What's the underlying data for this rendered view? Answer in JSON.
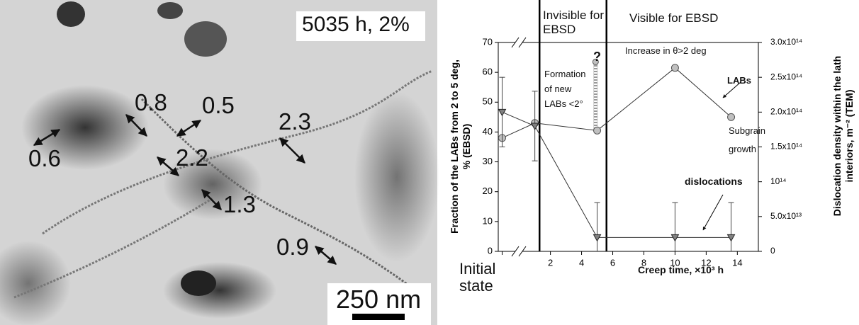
{
  "micrograph": {
    "condition": "5035 h, 2%",
    "scale_bar": "250 nm",
    "annotations": [
      "0.8",
      "0.5",
      "0.6",
      "2.3",
      "2.2",
      "1.3",
      "0.9"
    ]
  },
  "chart_data": {
    "type": "scatter",
    "x_label": "Creep time, ×10³ h",
    "y_label": "Fraction of the LABs from 2 to 5 deg, % (EBSD)",
    "y2_label": "Dislocation density within the lath interiors, m⁻² (TEM)",
    "xlim": [
      -1.35,
      15.35
    ],
    "xticks": [
      {
        "value": -1.1,
        "label": "Initial state"
      },
      2,
      4,
      6,
      8,
      10,
      12,
      14
    ],
    "ylim": [
      0,
      70
    ],
    "yticks": [
      0,
      10,
      20,
      30,
      40,
      50,
      60,
      70
    ],
    "y2lim": [
      0,
      300000000000000.0
    ],
    "y2ticks": [
      0,
      {
        "value": 50000000000000.0,
        "label": "5.0x10¹³"
      },
      {
        "value": 100000000000000.0,
        "label": "10¹⁴"
      },
      {
        "value": 150000000000000.0,
        "label": "1.5x10¹⁴"
      },
      {
        "value": 200000000000000.0,
        "label": "2.0x10¹⁴"
      },
      {
        "value": 250000000000000.0,
        "label": "2.5x10¹⁴"
      },
      {
        "value": 300000000000000.0,
        "label": "3.0x10¹⁴"
      }
    ],
    "dividers": [
      1.3,
      5.6
    ],
    "region_labels": [
      "Invisible for EBSD",
      "Visible for EBSD"
    ],
    "series": [
      {
        "name": "LABs",
        "color": "#c0c0c0",
        "x": [
          -1.1,
          1,
          5,
          10,
          13.6
        ],
        "values": [
          38,
          43,
          40.5,
          61.5,
          45
        ]
      },
      {
        "name": "dislocations",
        "color": "#808080",
        "axis": "y2",
        "x": [
          -1.1,
          1,
          5,
          10,
          13.6
        ],
        "values": [
          200000000000000.0,
          180000000000000.0,
          20000000000000.0,
          20000000000000.0,
          20000000000000.0
        ],
        "errors": [
          50000000000000.0,
          50000000000000.0,
          50000000000000.0,
          50000000000000.0,
          50000000000000.0
        ]
      }
    ],
    "uncertain_range": {
      "x": 4.9,
      "values": [
        40.5,
        63.5
      ]
    },
    "annotations": [
      "?",
      "Formation of new LABs <2°",
      "Increase in θ>2 deg",
      "Subgrain growth"
    ]
  }
}
